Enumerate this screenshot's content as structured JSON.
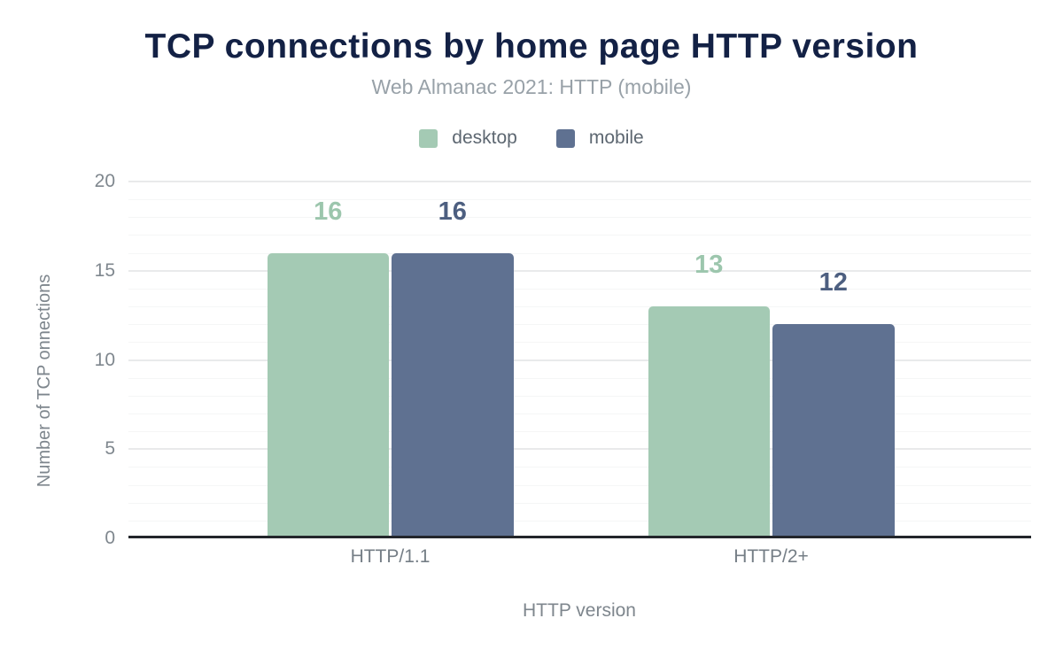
{
  "chart_data": {
    "type": "bar",
    "title": "TCP connections by home page HTTP version",
    "subtitle": "Web Almanac 2021: HTTP (mobile)",
    "xlabel": "HTTP version",
    "ylabel": "Number of TCP onnections",
    "categories": [
      "HTTP/1.1",
      "HTTP/2+"
    ],
    "series": [
      {
        "name": "desktop",
        "color": "#a4cab4",
        "label_color": "#9cc6ad",
        "values": [
          16,
          13
        ]
      },
      {
        "name": "mobile",
        "color": "#5f7191",
        "label_color": "#4d5f80",
        "values": [
          16,
          12
        ]
      }
    ],
    "ylim": [
      0,
      20
    ],
    "yticks": [
      0,
      5,
      10,
      15,
      20
    ],
    "minor_grid_step": 1,
    "major_grid_step": 5,
    "grid": true,
    "legend_position": "top",
    "value_labels_shown": true,
    "background_color": "#ffffff",
    "axis_line_color": "#23262b"
  }
}
